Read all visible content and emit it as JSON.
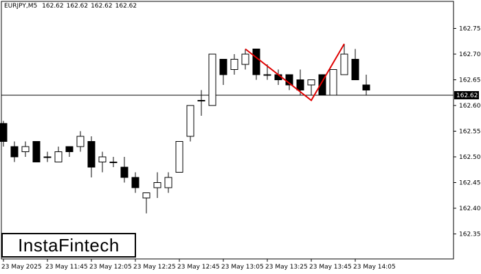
{
  "header": {
    "symbol": "EURJPY,M5",
    "ohlc": [
      "162.62",
      "162.62",
      "162.62",
      "162.62"
    ]
  },
  "logo": {
    "text": "InstaFintech"
  },
  "colors": {
    "bull": "#ffffff",
    "bear": "#000000",
    "pattern": "#e00000",
    "line": "#000000"
  },
  "chart_data": {
    "type": "candlestick",
    "title": "EURJPY,M5",
    "ylim": [
      162.3,
      162.8
    ],
    "y_ticks": [
      "162.75",
      "162.70",
      "162.65",
      "162.60",
      "162.55",
      "162.50",
      "162.45",
      "162.40",
      "162.35"
    ],
    "x_ticks": [
      "23 May 2025",
      "23 May 11:45",
      "23 May 12:05",
      "23 May 12:25",
      "23 May 12:45",
      "23 May 13:05",
      "23 May 13:25",
      "23 May 13:45",
      "23 May 14:05"
    ],
    "current_price": "162.62",
    "candles": [
      {
        "o": 162.565,
        "h": 162.57,
        "l": 162.52,
        "c": 162.53
      },
      {
        "o": 162.52,
        "h": 162.53,
        "l": 162.49,
        "c": 162.5
      },
      {
        "o": 162.51,
        "h": 162.53,
        "l": 162.5,
        "c": 162.52
      },
      {
        "o": 162.53,
        "h": 162.53,
        "l": 162.49,
        "c": 162.49
      },
      {
        "o": 162.5,
        "h": 162.51,
        "l": 162.49,
        "c": 162.5
      },
      {
        "o": 162.49,
        "h": 162.52,
        "l": 162.49,
        "c": 162.51
      },
      {
        "o": 162.52,
        "h": 162.52,
        "l": 162.5,
        "c": 162.51
      },
      {
        "o": 162.52,
        "h": 162.55,
        "l": 162.51,
        "c": 162.54
      },
      {
        "o": 162.53,
        "h": 162.54,
        "l": 162.46,
        "c": 162.48
      },
      {
        "o": 162.49,
        "h": 162.51,
        "l": 162.47,
        "c": 162.5
      },
      {
        "o": 162.49,
        "h": 162.5,
        "l": 162.48,
        "c": 162.49
      },
      {
        "o": 162.48,
        "h": 162.5,
        "l": 162.45,
        "c": 162.46
      },
      {
        "o": 162.46,
        "h": 162.47,
        "l": 162.43,
        "c": 162.44
      },
      {
        "o": 162.42,
        "h": 162.43,
        "l": 162.39,
        "c": 162.43
      },
      {
        "o": 162.44,
        "h": 162.47,
        "l": 162.42,
        "c": 162.45
      },
      {
        "o": 162.44,
        "h": 162.47,
        "l": 162.43,
        "c": 162.46
      },
      {
        "o": 162.47,
        "h": 162.53,
        "l": 162.47,
        "c": 162.53
      },
      {
        "o": 162.54,
        "h": 162.6,
        "l": 162.53,
        "c": 162.6
      },
      {
        "o": 162.61,
        "h": 162.63,
        "l": 162.58,
        "c": 162.61
      },
      {
        "o": 162.6,
        "h": 162.7,
        "l": 162.6,
        "c": 162.7
      },
      {
        "o": 162.69,
        "h": 162.69,
        "l": 162.64,
        "c": 162.66
      },
      {
        "o": 162.67,
        "h": 162.7,
        "l": 162.66,
        "c": 162.69
      },
      {
        "o": 162.68,
        "h": 162.71,
        "l": 162.67,
        "c": 162.7
      },
      {
        "o": 162.71,
        "h": 162.71,
        "l": 162.65,
        "c": 162.66
      },
      {
        "o": 162.66,
        "h": 162.68,
        "l": 162.65,
        "c": 162.66
      },
      {
        "o": 162.66,
        "h": 162.67,
        "l": 162.64,
        "c": 162.65
      },
      {
        "o": 162.66,
        "h": 162.66,
        "l": 162.63,
        "c": 162.64
      },
      {
        "o": 162.65,
        "h": 162.67,
        "l": 162.62,
        "c": 162.63
      },
      {
        "o": 162.64,
        "h": 162.65,
        "l": 162.62,
        "c": 162.65
      },
      {
        "o": 162.66,
        "h": 162.66,
        "l": 162.62,
        "c": 162.62
      },
      {
        "o": 162.62,
        "h": 162.67,
        "l": 162.62,
        "c": 162.67
      },
      {
        "o": 162.66,
        "h": 162.72,
        "l": 162.66,
        "c": 162.7
      },
      {
        "o": 162.69,
        "h": 162.71,
        "l": 162.65,
        "c": 162.65
      },
      {
        "o": 162.64,
        "h": 162.66,
        "l": 162.62,
        "c": 162.63
      }
    ],
    "pattern": {
      "name": "double top",
      "points": [
        {
          "candle": 22,
          "price": 162.71
        },
        {
          "candle": 28,
          "price": 162.61
        },
        {
          "candle": 31,
          "price": 162.72
        }
      ]
    }
  }
}
